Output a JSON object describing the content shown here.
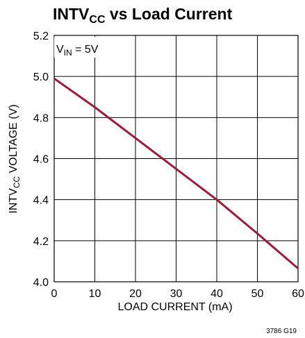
{
  "chart_data": {
    "type": "line",
    "title": {
      "main": "INTV",
      "sub": "CC",
      "rest": " vs Load Current"
    },
    "xlabel": "LOAD CURRENT (mA)",
    "ylabel": {
      "main": "INTV",
      "sub": "CC",
      "rest": " VOLTAGE (V)"
    },
    "xlim": [
      0,
      60
    ],
    "ylim": [
      4.0,
      5.2
    ],
    "xticks": [
      0,
      10,
      20,
      30,
      40,
      50,
      60
    ],
    "yticks": [
      4.0,
      4.2,
      4.4,
      4.6,
      4.8,
      5.0,
      5.2
    ],
    "xtick_labels": [
      "0",
      "10",
      "20",
      "30",
      "40",
      "50",
      "60"
    ],
    "ytick_labels": [
      "4.0",
      "4.2",
      "4.4",
      "4.6",
      "4.8",
      "5.0",
      "5.2"
    ],
    "grid": true,
    "annotation": {
      "main": "V",
      "sub": "IN",
      "rest": " = 5V"
    },
    "series": [
      {
        "color": "#9b1b3a",
        "x": [
          0,
          10,
          20,
          30,
          40,
          50,
          60
        ],
        "y": [
          4.99,
          4.85,
          4.7,
          4.55,
          4.4,
          4.235,
          4.065
        ]
      }
    ],
    "figure_id": "3786 G19"
  }
}
